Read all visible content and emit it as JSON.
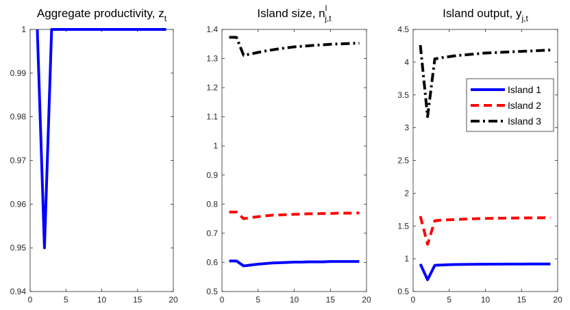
{
  "chart_data": [
    {
      "type": "line",
      "title": "Aggregate productivity, z",
      "title_sub": "t",
      "title_sup": "",
      "xlim": [
        0,
        20
      ],
      "ylim": [
        0.94,
        1.0
      ],
      "xticks": [
        0,
        5,
        10,
        15,
        20
      ],
      "yticks": [
        0.94,
        0.95,
        0.96,
        0.97,
        0.98,
        0.99,
        1.0
      ],
      "xtick_labels": [
        "0",
        "5",
        "10",
        "15",
        "20"
      ],
      "ytick_labels": [
        "0.94",
        "0.95",
        "0.96",
        "0.97",
        "0.98",
        "0.99",
        "1"
      ],
      "grid": false,
      "legend": null,
      "series": [
        {
          "color": "#0000ff",
          "style": "solid",
          "x": [
            1,
            2,
            3,
            4,
            5,
            6,
            7,
            8,
            9,
            10,
            11,
            12,
            13,
            14,
            15,
            16,
            17,
            18,
            19
          ],
          "y": [
            1.0,
            0.95,
            1.0,
            1.0,
            1.0,
            1.0,
            1.0,
            1.0,
            1.0,
            1.0,
            1.0,
            1.0,
            1.0,
            1.0,
            1.0,
            1.0,
            1.0,
            1.0,
            1.0
          ]
        }
      ]
    },
    {
      "type": "line",
      "title": "Island size, n",
      "title_sub": "j,t",
      "title_sup": "l",
      "xlim": [
        0,
        20
      ],
      "ylim": [
        0.5,
        1.4
      ],
      "xticks": [
        0,
        5,
        10,
        15,
        20
      ],
      "yticks": [
        0.5,
        0.6,
        0.7,
        0.8,
        0.9,
        1.0,
        1.1,
        1.2,
        1.3,
        1.4
      ],
      "xtick_labels": [
        "0",
        "5",
        "10",
        "15",
        "20"
      ],
      "ytick_labels": [
        "0.5",
        "0.6",
        "0.7",
        "0.8",
        "0.9",
        "1",
        "1.1",
        "1.2",
        "1.3",
        "1.4"
      ],
      "grid": false,
      "legend": null,
      "series": [
        {
          "color": "#0000ff",
          "style": "solid",
          "x": [
            1,
            2,
            3,
            4,
            5,
            6,
            7,
            8,
            9,
            10,
            11,
            12,
            13,
            14,
            15,
            16,
            17,
            18,
            19
          ],
          "y": [
            0.605,
            0.605,
            0.588,
            0.591,
            0.594,
            0.596,
            0.598,
            0.599,
            0.6,
            0.601,
            0.601,
            0.602,
            0.602,
            0.602,
            0.603,
            0.603,
            0.603,
            0.603,
            0.603
          ]
        },
        {
          "color": "#ff0000",
          "style": "dash",
          "x": [
            1,
            2,
            3,
            4,
            5,
            6,
            7,
            8,
            9,
            10,
            11,
            12,
            13,
            14,
            15,
            16,
            17,
            18,
            19
          ],
          "y": [
            0.773,
            0.773,
            0.75,
            0.754,
            0.757,
            0.76,
            0.762,
            0.763,
            0.764,
            0.765,
            0.766,
            0.767,
            0.767,
            0.768,
            0.768,
            0.769,
            0.769,
            0.769,
            0.77
          ]
        },
        {
          "color": "#000000",
          "style": "dashdot",
          "x": [
            1,
            2,
            3,
            4,
            5,
            6,
            7,
            8,
            9,
            10,
            11,
            12,
            13,
            14,
            15,
            16,
            17,
            18,
            19
          ],
          "y": [
            1.373,
            1.373,
            1.311,
            1.316,
            1.321,
            1.326,
            1.33,
            1.334,
            1.337,
            1.34,
            1.342,
            1.344,
            1.346,
            1.347,
            1.349,
            1.35,
            1.351,
            1.352,
            1.353
          ]
        }
      ]
    },
    {
      "type": "line",
      "title": "Island output, y",
      "title_sub": "j,t",
      "title_sup": "",
      "xlim": [
        0,
        20
      ],
      "ylim": [
        0.5,
        4.5
      ],
      "xticks": [
        0,
        5,
        10,
        15,
        20
      ],
      "yticks": [
        0.5,
        1.0,
        1.5,
        2.0,
        2.5,
        3.0,
        3.5,
        4.0,
        4.5
      ],
      "xtick_labels": [
        "0",
        "5",
        "10",
        "15",
        "20"
      ],
      "ytick_labels": [
        "0.5",
        "1",
        "1.5",
        "2",
        "2.5",
        "3",
        "3.5",
        "4",
        "4.5"
      ],
      "grid": false,
      "legend": "inside-right",
      "series": [
        {
          "name": "Island 1",
          "color": "#0000ff",
          "style": "solid",
          "x": [
            1,
            2,
            3,
            4,
            5,
            6,
            7,
            8,
            9,
            10,
            11,
            12,
            13,
            14,
            15,
            16,
            17,
            18,
            19
          ],
          "y": [
            0.92,
            0.68,
            0.9,
            0.905,
            0.91,
            0.912,
            0.914,
            0.915,
            0.916,
            0.917,
            0.918,
            0.918,
            0.919,
            0.919,
            0.919,
            0.92,
            0.92,
            0.92,
            0.92
          ]
        },
        {
          "name": "Island 2",
          "color": "#ff0000",
          "style": "dash",
          "x": [
            1,
            2,
            3,
            4,
            5,
            6,
            7,
            8,
            9,
            10,
            11,
            12,
            13,
            14,
            15,
            16,
            17,
            18,
            19
          ],
          "y": [
            1.65,
            1.22,
            1.58,
            1.59,
            1.595,
            1.6,
            1.605,
            1.61,
            1.612,
            1.615,
            1.617,
            1.619,
            1.62,
            1.622,
            1.623,
            1.624,
            1.625,
            1.626,
            1.627
          ]
        },
        {
          "name": "Island 3",
          "color": "#000000",
          "style": "dashdot",
          "x": [
            1,
            2,
            3,
            4,
            5,
            6,
            7,
            8,
            9,
            10,
            11,
            12,
            13,
            14,
            15,
            16,
            17,
            18,
            19
          ],
          "y": [
            4.26,
            3.17,
            4.05,
            4.07,
            4.085,
            4.1,
            4.11,
            4.12,
            4.13,
            4.14,
            4.145,
            4.15,
            4.155,
            4.16,
            4.165,
            4.17,
            4.175,
            4.18,
            4.185
          ]
        }
      ]
    }
  ]
}
